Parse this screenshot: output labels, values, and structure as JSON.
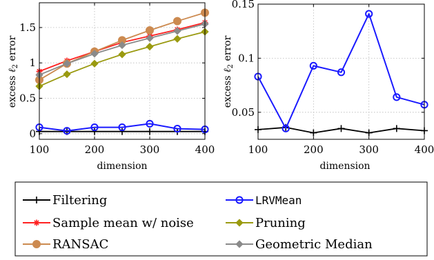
{
  "chart_data": [
    {
      "type": "line",
      "xlabel": "dimension",
      "ylabel": "excess ℓ2 error",
      "x": [
        100,
        150,
        200,
        250,
        300,
        350,
        400
      ],
      "xlim": [
        100,
        400
      ],
      "ylim": [
        -0.08,
        1.85
      ],
      "xticks": [
        100,
        200,
        300,
        400
      ],
      "yticks": [
        0,
        0.5,
        1,
        1.5
      ],
      "ytick_labels": [
        "0",
        "0.5",
        "1",
        "1.5"
      ],
      "grid": true,
      "series": [
        {
          "name": "Filtering",
          "values": [
            0.03,
            0.03,
            0.03,
            0.03,
            0.03,
            0.03,
            0.03
          ]
        },
        {
          "name": "Sample mean w/ noise",
          "values": [
            0.88,
            1.03,
            1.16,
            1.29,
            1.38,
            1.47,
            1.57
          ]
        },
        {
          "name": "RANSAC",
          "values": [
            0.76,
            0.99,
            1.16,
            1.32,
            1.46,
            1.59,
            1.71
          ]
        },
        {
          "name": "LRVMean",
          "values": [
            0.09,
            0.04,
            0.09,
            0.09,
            0.14,
            0.07,
            0.06
          ]
        },
        {
          "name": "Pruning",
          "values": [
            0.67,
            0.84,
            0.99,
            1.12,
            1.23,
            1.34,
            1.44
          ]
        },
        {
          "name": "Geometric Median",
          "values": [
            0.83,
            0.99,
            1.13,
            1.25,
            1.35,
            1.45,
            1.55
          ]
        }
      ]
    },
    {
      "type": "line",
      "xlabel": "dimension",
      "ylabel": "excess ℓ2 error",
      "x": [
        100,
        150,
        200,
        250,
        300,
        350,
        400
      ],
      "xlim": [
        100,
        400
      ],
      "ylim": [
        0.025,
        0.15
      ],
      "xticks": [
        100,
        200,
        300,
        400
      ],
      "yticks": [
        0.05,
        0.1,
        0.15
      ],
      "ytick_labels": [
        "0.05",
        "0.1",
        "0.15"
      ],
      "grid": true,
      "series": [
        {
          "name": "Filtering",
          "values": [
            0.034,
            0.036,
            0.031,
            0.035,
            0.031,
            0.035,
            0.033
          ]
        },
        {
          "name": "LRVMean",
          "values": [
            0.083,
            0.035,
            0.093,
            0.087,
            0.141,
            0.064,
            0.057
          ]
        }
      ]
    }
  ],
  "legend": {
    "placement": "bottom",
    "entries": [
      {
        "label": "Filtering",
        "color": "#000000",
        "marker": "plus"
      },
      {
        "label": "LRVMean",
        "color": "#1a1aff",
        "marker": "circle"
      },
      {
        "label": "Sample mean w/ noise",
        "color": "#ff2020",
        "marker": "star"
      },
      {
        "label": "Pruning",
        "color": "#9a9a10",
        "marker": "diamond"
      },
      {
        "label": "RANSAC",
        "color": "#cc8a50",
        "marker": "filled-circle"
      },
      {
        "label": "Geometric Median",
        "color": "#8a8a8a",
        "marker": "diamond"
      }
    ]
  },
  "series_colors": {
    "Filtering": "#000000",
    "Sample mean w/ noise": "#ff2020",
    "RANSAC": "#cc8a50",
    "LRVMean": "#1a1aff",
    "Pruning": "#9a9a10",
    "Geometric Median": "#8a8a8a"
  }
}
